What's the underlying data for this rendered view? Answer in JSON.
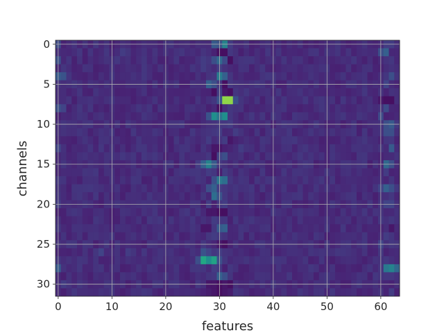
{
  "chart_data": {
    "type": "heatmap",
    "title": "",
    "xlabel": "features",
    "ylabel": "channels",
    "n_cols": 64,
    "n_rows": 32,
    "xlim": [
      -0.5,
      63.5
    ],
    "ylim": [
      31.5,
      -0.5
    ],
    "x_ticks": [
      0,
      10,
      20,
      30,
      40,
      50,
      60
    ],
    "y_ticks": [
      0,
      5,
      10,
      15,
      20,
      25,
      30
    ],
    "grid": true,
    "grid_color": "#b0b0b0",
    "colormap": "viridis",
    "value_range": [
      0,
      1
    ],
    "background_value": 0.15,
    "cells": [
      [
        31,
        0,
        0.55
      ],
      [
        30,
        0,
        0.32
      ],
      [
        29,
        0,
        0.35
      ],
      [
        32,
        0,
        0.22
      ],
      [
        61,
        0,
        0.22
      ],
      [
        62,
        0,
        0.22
      ],
      [
        0,
        0,
        0.28
      ],
      [
        31,
        1,
        0.05
      ],
      [
        30,
        1,
        0.05
      ],
      [
        32,
        1,
        0.2
      ],
      [
        60,
        1,
        0.3
      ],
      [
        61,
        1,
        0.38
      ],
      [
        12,
        1,
        0.22
      ],
      [
        4,
        1,
        0.2
      ],
      [
        29,
        2,
        0.3
      ],
      [
        30,
        2,
        0.42
      ],
      [
        31,
        2,
        0.28
      ],
      [
        32,
        2,
        0.05
      ],
      [
        27,
        2,
        0.22
      ],
      [
        62,
        2,
        0.2
      ],
      [
        0,
        2,
        0.3
      ],
      [
        30,
        3,
        0.22
      ],
      [
        31,
        3,
        0.15
      ],
      [
        27,
        3,
        0.22
      ],
      [
        62,
        3,
        0.18
      ],
      [
        30,
        4,
        0.52
      ],
      [
        31,
        4,
        0.38
      ],
      [
        29,
        4,
        0.2
      ],
      [
        0,
        4,
        0.35
      ],
      [
        1,
        4,
        0.32
      ],
      [
        62,
        4,
        0.3
      ],
      [
        28,
        5,
        0.38
      ],
      [
        29,
        5,
        0.3
      ],
      [
        30,
        5,
        0.2
      ],
      [
        31,
        5,
        0.05
      ],
      [
        32,
        5,
        0.2
      ],
      [
        61,
        5,
        0.25
      ],
      [
        29,
        6,
        0.05
      ],
      [
        30,
        6,
        0.22
      ],
      [
        32,
        6,
        0.05
      ],
      [
        31,
        6,
        0.08
      ],
      [
        31,
        7,
        0.95
      ],
      [
        32,
        7,
        0.95
      ],
      [
        33,
        7,
        0.3
      ],
      [
        30,
        7,
        0.32
      ],
      [
        29,
        7,
        0.2
      ],
      [
        61,
        7,
        0.05
      ],
      [
        62,
        7,
        0.05
      ],
      [
        60,
        7,
        0.08
      ],
      [
        30,
        8,
        0.05
      ],
      [
        29,
        8,
        0.15
      ],
      [
        32,
        8,
        0.2
      ],
      [
        0,
        8,
        0.3
      ],
      [
        1,
        8,
        0.25
      ],
      [
        61,
        8,
        0.28
      ],
      [
        29,
        9,
        0.62
      ],
      [
        30,
        9,
        0.5
      ],
      [
        31,
        9,
        0.62
      ],
      [
        28,
        9,
        0.32
      ],
      [
        32,
        9,
        0.2
      ],
      [
        60,
        9,
        0.28
      ],
      [
        30,
        10,
        0.2
      ],
      [
        31,
        10,
        0.2
      ],
      [
        32,
        10,
        0.22
      ],
      [
        61,
        10,
        0.3
      ],
      [
        62,
        10,
        0.35
      ],
      [
        30,
        11,
        0.22
      ],
      [
        33,
        11,
        0.22
      ],
      [
        29,
        11,
        0.2
      ],
      [
        61,
        11,
        0.3
      ],
      [
        62,
        11,
        0.3
      ],
      [
        10,
        11,
        0.2
      ],
      [
        14,
        11,
        0.2
      ],
      [
        28,
        12,
        0.22
      ],
      [
        31,
        12,
        0.22
      ],
      [
        32,
        12,
        0.08
      ],
      [
        62,
        12,
        0.2
      ],
      [
        30,
        13,
        0.08
      ],
      [
        29,
        13,
        0.08
      ],
      [
        34,
        13,
        0.22
      ],
      [
        62,
        13,
        0.35
      ],
      [
        0,
        13,
        0.25
      ],
      [
        31,
        14,
        0.3
      ],
      [
        30,
        14,
        0.25
      ],
      [
        29,
        14,
        0.05
      ],
      [
        28,
        14,
        0.2
      ],
      [
        27,
        15,
        0.38
      ],
      [
        28,
        15,
        0.55
      ],
      [
        29,
        15,
        0.35
      ],
      [
        30,
        15,
        0.2
      ],
      [
        26,
        15,
        0.22
      ],
      [
        61,
        15,
        0.42
      ],
      [
        62,
        15,
        0.3
      ],
      [
        28,
        16,
        0.22
      ],
      [
        29,
        16,
        0.2
      ],
      [
        31,
        16,
        0.22
      ],
      [
        61,
        16,
        0.22
      ],
      [
        30,
        17,
        0.5
      ],
      [
        31,
        17,
        0.45
      ],
      [
        29,
        17,
        0.3
      ],
      [
        32,
        17,
        0.2
      ],
      [
        28,
        18,
        0.3
      ],
      [
        29,
        18,
        0.38
      ],
      [
        30,
        18,
        0.22
      ],
      [
        31,
        18,
        0.2
      ],
      [
        61,
        18,
        0.38
      ],
      [
        62,
        18,
        0.3
      ],
      [
        60,
        18,
        0.25
      ],
      [
        29,
        19,
        0.45
      ],
      [
        30,
        19,
        0.32
      ],
      [
        31,
        19,
        0.2
      ],
      [
        62,
        19,
        0.2
      ],
      [
        30,
        20,
        0.2
      ],
      [
        31,
        20,
        0.22
      ],
      [
        28,
        20,
        0.22
      ],
      [
        61,
        20,
        0.25
      ],
      [
        62,
        20,
        0.25
      ],
      [
        0,
        20,
        0.22
      ],
      [
        30,
        21,
        0.05
      ],
      [
        31,
        21,
        0.05
      ],
      [
        29,
        21,
        0.08
      ],
      [
        28,
        21,
        0.08
      ],
      [
        26,
        21,
        0.2
      ],
      [
        29,
        22,
        0.22
      ],
      [
        30,
        22,
        0.2
      ],
      [
        31,
        22,
        0.2
      ],
      [
        62,
        22,
        0.2
      ],
      [
        30,
        23,
        0.35
      ],
      [
        31,
        23,
        0.38
      ],
      [
        29,
        23,
        0.2
      ],
      [
        27,
        23,
        0.08
      ],
      [
        28,
        23,
        0.08
      ],
      [
        62,
        23,
        0.08
      ],
      [
        29,
        24,
        0.22
      ],
      [
        30,
        24,
        0.2
      ],
      [
        61,
        24,
        0.22
      ],
      [
        30,
        25,
        0.08
      ],
      [
        31,
        25,
        0.05
      ],
      [
        27,
        25,
        0.2
      ],
      [
        62,
        25,
        0.2
      ],
      [
        60,
        25,
        0.25
      ],
      [
        27,
        26,
        0.32
      ],
      [
        28,
        26,
        0.25
      ],
      [
        29,
        26,
        0.2
      ],
      [
        30,
        26,
        0.22
      ],
      [
        8,
        26,
        0.25
      ],
      [
        13,
        26,
        0.22
      ],
      [
        16,
        26,
        0.2
      ],
      [
        27,
        27,
        0.75
      ],
      [
        28,
        27,
        0.62
      ],
      [
        29,
        27,
        0.72
      ],
      [
        30,
        27,
        0.3
      ],
      [
        26,
        27,
        0.3
      ],
      [
        61,
        27,
        0.2
      ],
      [
        61,
        28,
        0.5
      ],
      [
        62,
        28,
        0.55
      ],
      [
        63,
        28,
        0.42
      ],
      [
        30,
        28,
        0.2
      ],
      [
        0,
        28,
        0.35
      ],
      [
        29,
        28,
        0.22
      ],
      [
        30,
        29,
        0.38
      ],
      [
        31,
        29,
        0.3
      ],
      [
        29,
        29,
        0.2
      ],
      [
        61,
        29,
        0.2
      ],
      [
        62,
        29,
        0.2
      ],
      [
        28,
        30,
        0.08
      ],
      [
        29,
        30,
        0.08
      ],
      [
        30,
        30,
        0.05
      ],
      [
        31,
        30,
        0.08
      ],
      [
        32,
        30,
        0.05
      ],
      [
        1,
        30,
        0.22
      ],
      [
        22,
        30,
        0.2
      ],
      [
        29,
        31,
        0.08
      ],
      [
        30,
        31,
        0.05
      ],
      [
        31,
        31,
        0.08
      ],
      [
        32,
        31,
        0.1
      ],
      [
        28,
        31,
        0.1
      ],
      [
        62,
        31,
        0.22
      ]
    ]
  }
}
